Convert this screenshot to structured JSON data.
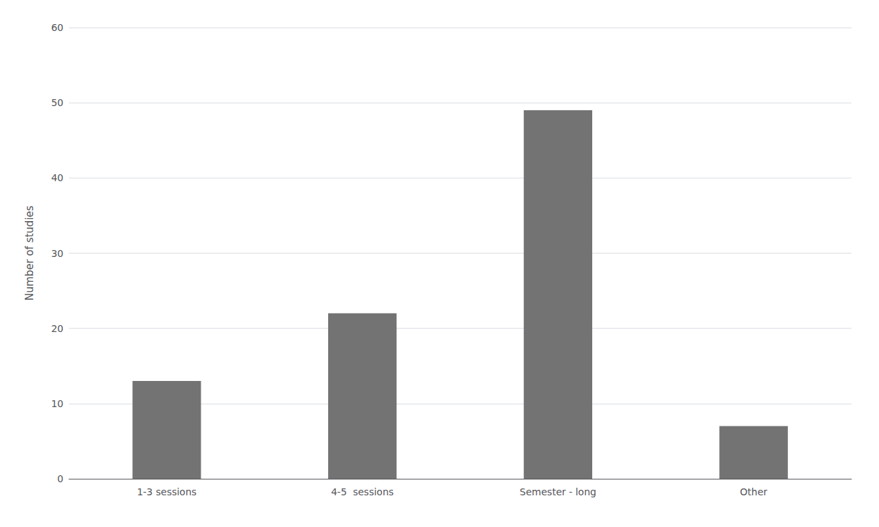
{
  "chart_data": {
    "type": "bar",
    "categories": [
      "1-3 sessions",
      "4-5  sessions",
      "Semester - long",
      "Other"
    ],
    "values": [
      13,
      22,
      49,
      7
    ],
    "color": "#737373",
    "ylabel": "Number of studies",
    "ylim": [
      0,
      60
    ],
    "yticks": [
      0,
      10,
      20,
      30,
      40,
      50,
      60
    ],
    "grid": true
  }
}
